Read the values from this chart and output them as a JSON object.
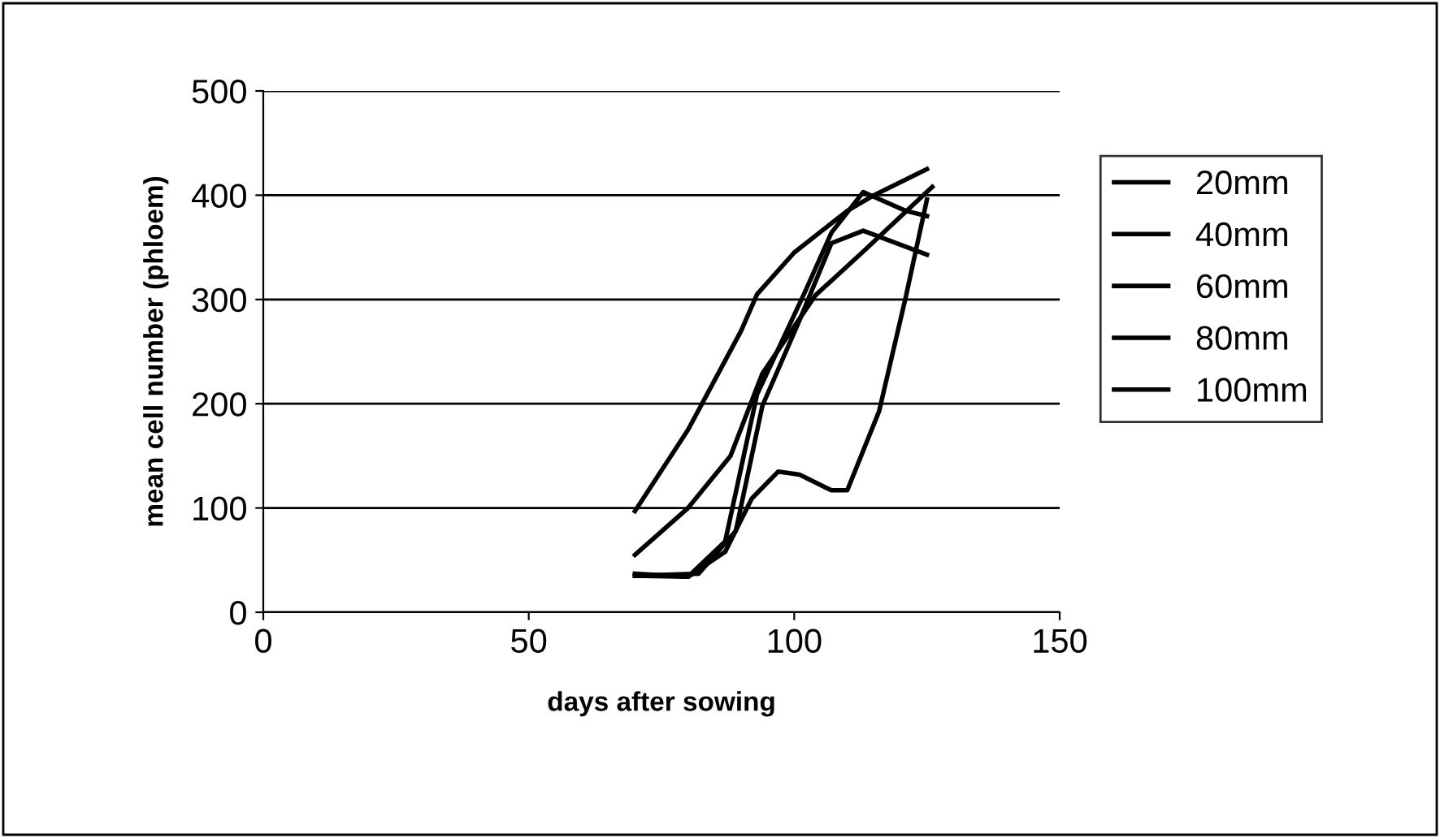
{
  "chart_data": {
    "type": "line",
    "xlabel": "days after sowing",
    "ylabel": "mean cell number (phloem)",
    "xlim": [
      0,
      150
    ],
    "ylim": [
      0,
      500
    ],
    "xticks": [
      0,
      50,
      100,
      150
    ],
    "yticks": [
      0,
      100,
      200,
      300,
      400,
      500
    ],
    "grid": "y",
    "legend": "right",
    "series": [
      {
        "name": "20mm",
        "color": "#000000",
        "x": [
          70,
          80,
          90,
          93,
          100,
          110,
          115,
          125
        ],
        "values": [
          97,
          175,
          270,
          305,
          345,
          385,
          400,
          425
        ]
      },
      {
        "name": "40mm",
        "color": "#000000",
        "x": [
          70,
          80,
          88,
          94,
          104,
          113,
          126
        ],
        "values": [
          55,
          100,
          150,
          229,
          304,
          346,
          408
        ]
      },
      {
        "name": "60mm",
        "color": "#000000",
        "x": [
          70,
          80,
          87,
          92,
          97,
          101,
          107,
          110,
          116,
          121,
          125
        ],
        "values": [
          37,
          34,
          58,
          109,
          135,
          132,
          117,
          117,
          193,
          302,
          396
        ]
      },
      {
        "name": "80mm",
        "color": "#000000",
        "x": [
          70,
          80,
          87,
          93,
          102,
          107,
          113,
          121,
          125
        ],
        "values": [
          35,
          34,
          68,
          209,
          307,
          364,
          403,
          385,
          380
        ]
      },
      {
        "name": "100mm",
        "color": "#000000",
        "x": [
          70,
          82,
          89,
          94,
          101,
          107,
          113,
          125
        ],
        "values": [
          35,
          37,
          78,
          198,
          280,
          354,
          366,
          343
        ]
      }
    ]
  }
}
